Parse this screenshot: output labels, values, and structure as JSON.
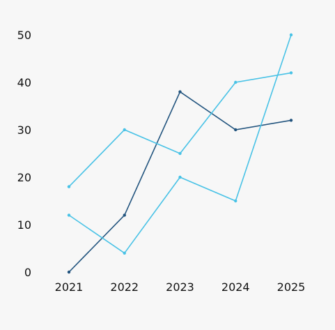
{
  "chart_data": {
    "type": "line",
    "categories": [
      "2021",
      "2022",
      "2023",
      "2024",
      "2025"
    ],
    "series": [
      {
        "values": [
          0,
          12,
          38,
          30,
          32
        ],
        "color": "#22547e"
      },
      {
        "values": [
          18,
          30,
          25,
          40,
          42
        ],
        "color": "#48c2e6"
      },
      {
        "values": [
          12,
          4,
          20,
          15,
          50
        ],
        "color": "#48c2e6"
      }
    ],
    "y_ticks": [
      "0",
      "10",
      "20",
      "30",
      "40",
      "50"
    ],
    "ylim": [
      0,
      50
    ],
    "grid": false,
    "legend": "none"
  }
}
